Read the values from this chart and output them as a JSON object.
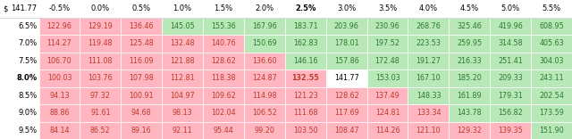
{
  "header_labels": [
    "$ 141.77",
    "-0.5%",
    "0.0%",
    "0.5%",
    "1.0%",
    "1.5%",
    "2.0%",
    "2.5%",
    "3.0%",
    "3.5%",
    "4.0%",
    "4.5%",
    "5.0%",
    "5.5%"
  ],
  "row_labels": [
    "6.5%",
    "7.0%",
    "7.5%",
    "8.0%",
    "8.5%",
    "9.0%",
    "9.5%"
  ],
  "bold_row": "8.0%",
  "bold_col_index": 6,
  "values": [
    [
      122.96,
      129.19,
      136.46,
      145.05,
      155.36,
      167.96,
      183.71,
      203.96,
      230.96,
      268.76,
      325.46,
      419.96,
      608.95
    ],
    [
      114.27,
      119.48,
      125.48,
      132.48,
      140.76,
      150.69,
      162.83,
      178.01,
      197.52,
      223.53,
      259.95,
      314.58,
      405.63
    ],
    [
      106.7,
      111.08,
      116.09,
      121.88,
      128.62,
      136.6,
      146.16,
      157.86,
      172.48,
      191.27,
      216.33,
      251.41,
      304.03
    ],
    [
      100.03,
      103.76,
      107.98,
      112.81,
      118.38,
      124.87,
      132.55,
      141.77,
      153.03,
      167.1,
      185.2,
      209.33,
      243.11
    ],
    [
      94.13,
      97.32,
      100.91,
      104.97,
      109.62,
      114.98,
      121.23,
      128.62,
      137.49,
      148.33,
      161.89,
      179.31,
      202.54
    ],
    [
      88.86,
      91.61,
      94.68,
      98.13,
      102.04,
      106.52,
      111.68,
      117.69,
      124.81,
      133.34,
      143.78,
      156.82,
      173.59
    ],
    [
      84.14,
      86.52,
      89.16,
      92.11,
      95.44,
      99.2,
      103.5,
      108.47,
      114.26,
      121.1,
      129.32,
      139.35,
      151.9
    ]
  ],
  "threshold": 141.77,
  "color_above": "#b8e8b8",
  "color_below": "#ffb6c1",
  "color_exact": "#ffffff",
  "text_color_above": "#2d7a2d",
  "text_color_below": "#c0392b",
  "text_color_neutral": "#000000",
  "header_fontsize": 6.0,
  "cell_fontsize": 5.8,
  "row_label_fontsize": 6.0
}
